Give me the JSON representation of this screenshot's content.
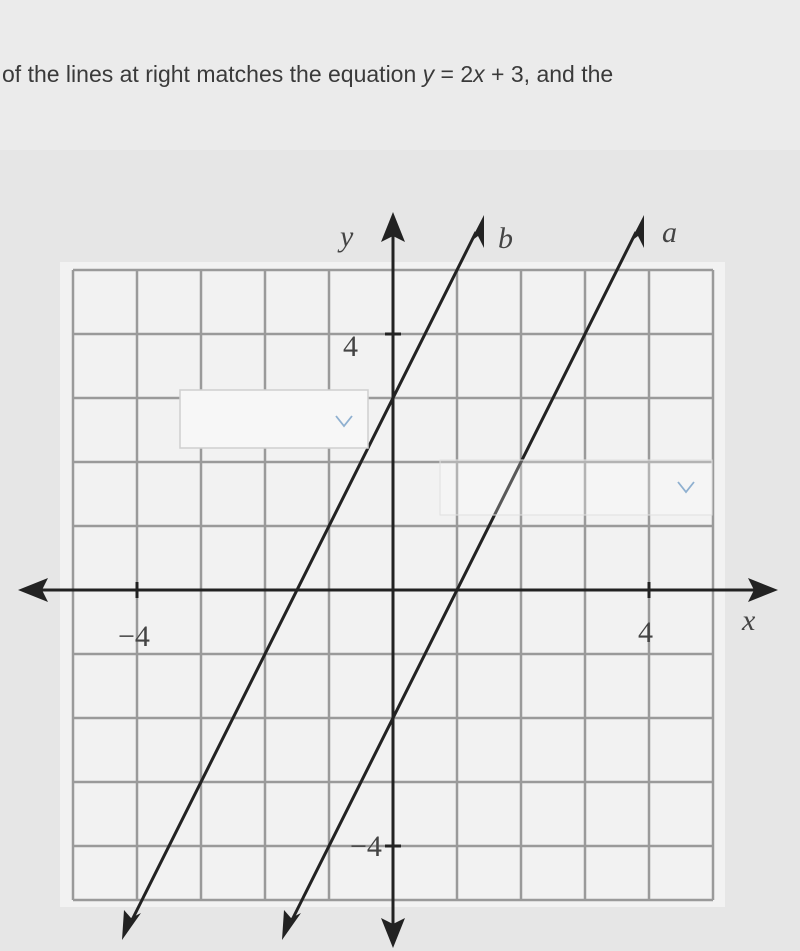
{
  "question": {
    "segments": [
      "of the lines at right matches the equation ",
      "y",
      " = 2",
      "x",
      " + 3, and the"
    ]
  },
  "graph": {
    "axis_labels": {
      "x": "x",
      "y": "y"
    },
    "line_labels": [
      "b",
      "a"
    ],
    "tick_labels": {
      "x_negative": "−4",
      "x_positive": "4",
      "y_positive": "4",
      "y_negative": "−4"
    }
  }
}
